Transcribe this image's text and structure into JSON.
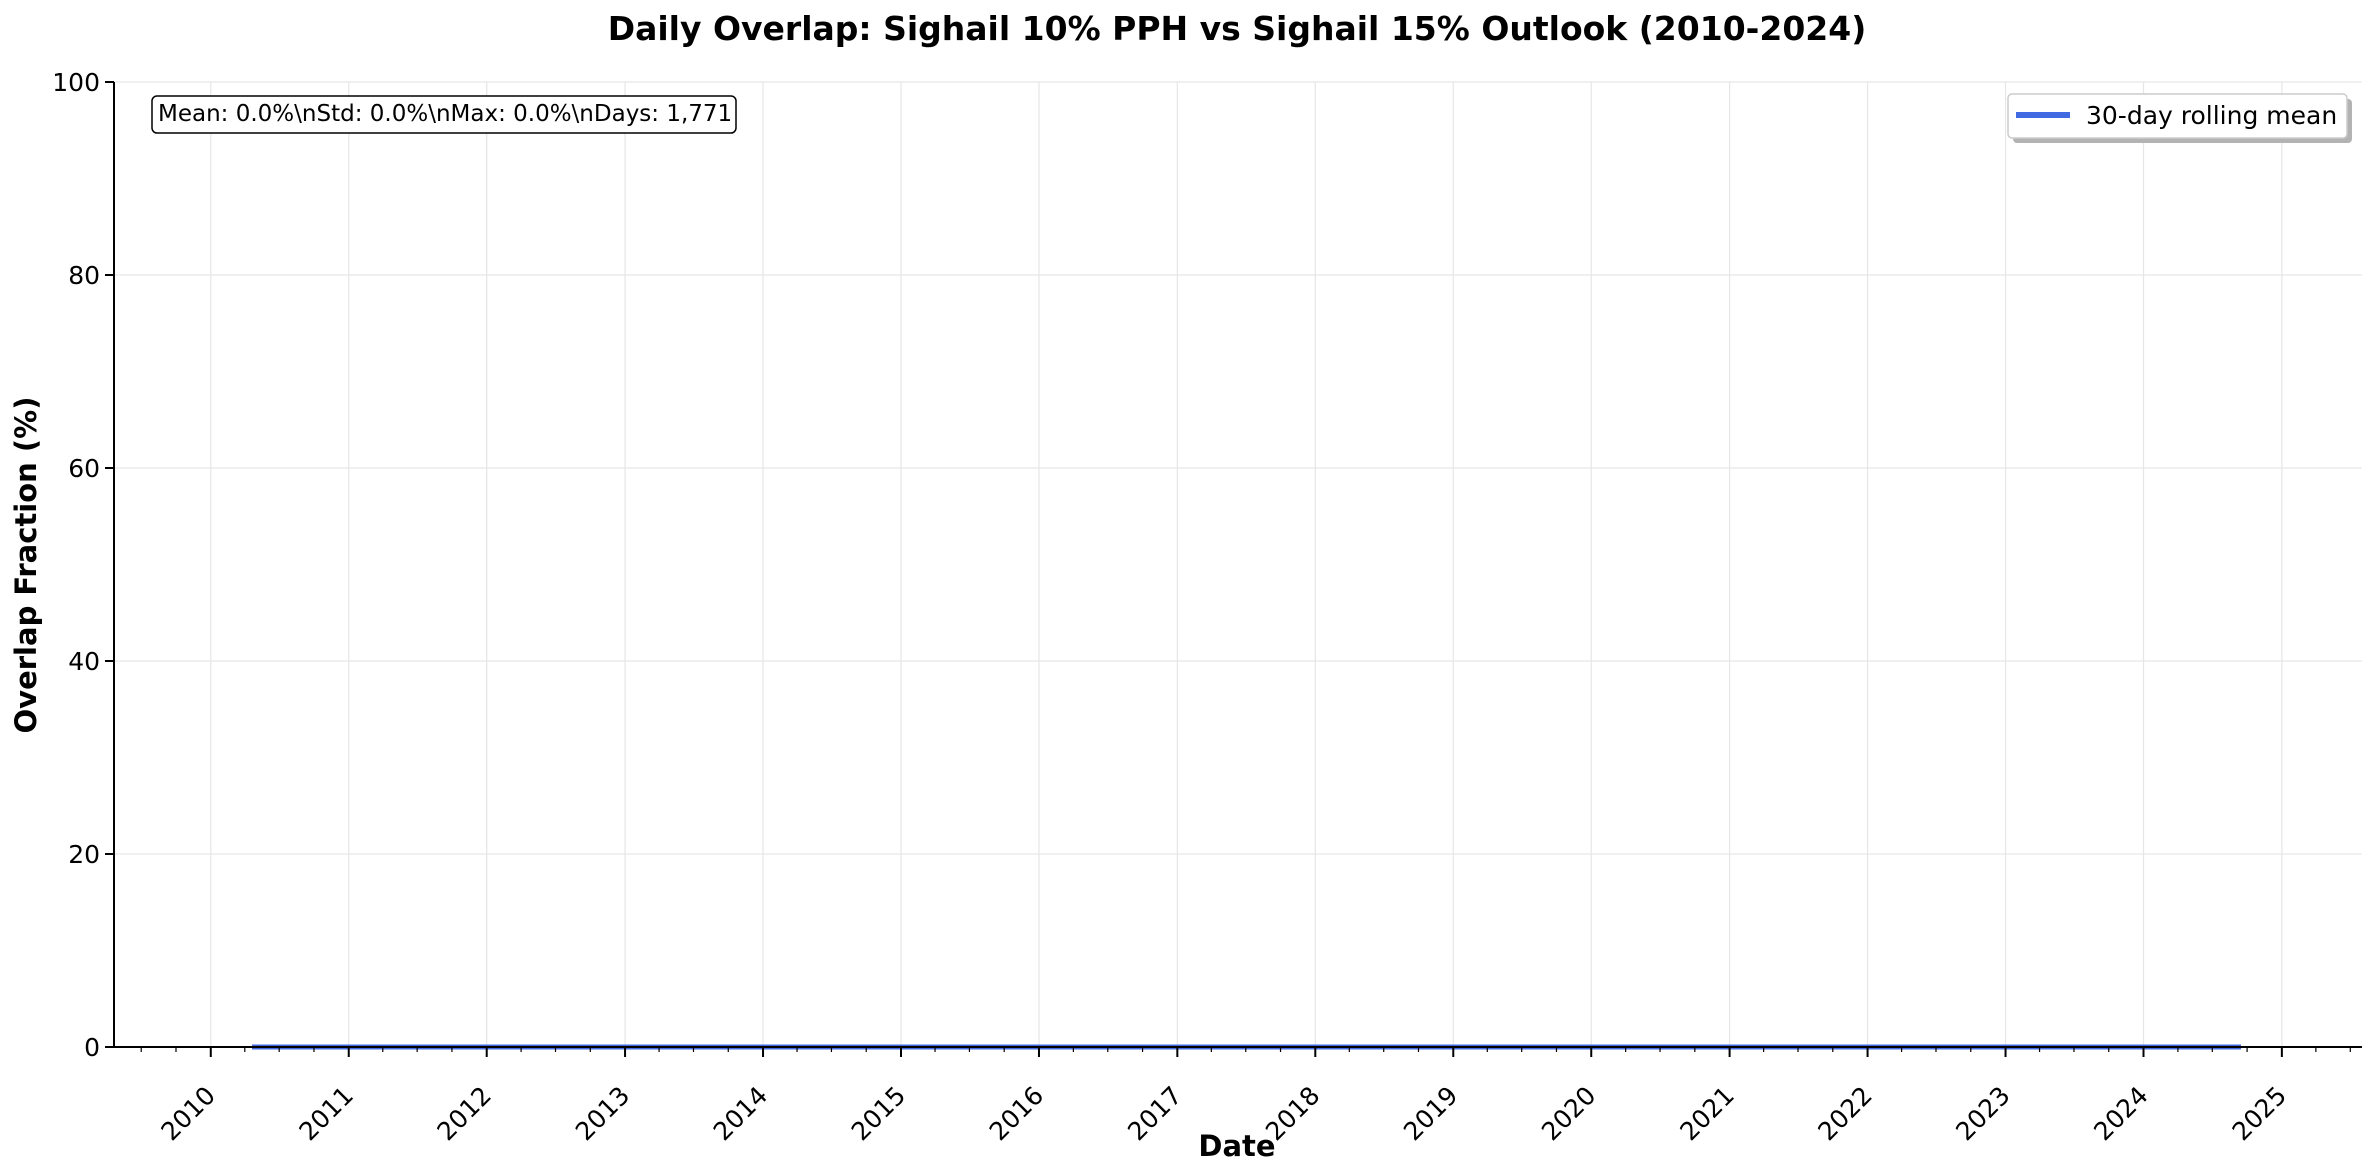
{
  "chart_data": {
    "type": "line",
    "title": "Daily Overlap: Sighail 10% PPH vs Sighail 15% Outlook (2010-2024)",
    "xlabel": "Date",
    "ylabel": "Overlap Fraction (%)",
    "ylim": [
      0,
      100
    ],
    "xlim": [
      "2009-04-20",
      "2025-08-01"
    ],
    "y_ticks": [
      "0",
      "20",
      "40",
      "60",
      "80",
      "100"
    ],
    "x_ticks": [
      "2010",
      "2011",
      "2012",
      "2013",
      "2014",
      "2015",
      "2016",
      "2017",
      "2018",
      "2019",
      "2020",
      "2021",
      "2022",
      "2023",
      "2024",
      "2025"
    ],
    "grid": true,
    "legend_position": "top-right",
    "stats_box": "Mean: 0.0%\\nStd: 0.0%\\nMax: 0.0%\\nDays: 1,771",
    "series": [
      {
        "name": "30-day rolling mean",
        "color": "#4169e1",
        "x": [
          "2010-04-20",
          "2024-09-15"
        ],
        "y": [
          0.0,
          0.0
        ]
      }
    ]
  }
}
